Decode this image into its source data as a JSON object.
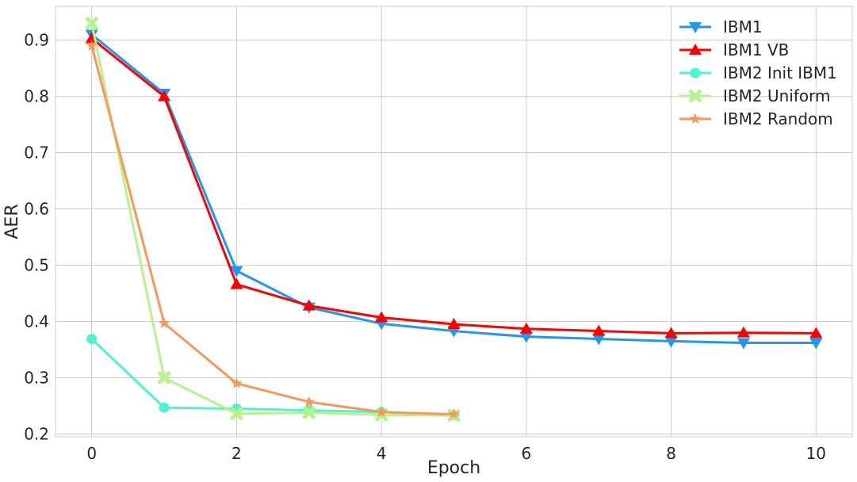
{
  "chart_data": {
    "type": "line",
    "xlabel": "Epoch",
    "ylabel": "AER",
    "xlim": [
      -0.5,
      10.5
    ],
    "ylim": [
      0.195,
      0.96
    ],
    "xticks": [
      0,
      2,
      4,
      6,
      8,
      10
    ],
    "yticks": [
      0.2,
      0.3,
      0.4,
      0.5,
      0.6,
      0.7,
      0.8,
      0.9
    ],
    "xtick_labels": [
      "0",
      "2",
      "4",
      "6",
      "8",
      "10"
    ],
    "ytick_labels": [
      "0.2",
      "0.3",
      "0.4",
      "0.5",
      "0.6",
      "0.7",
      "0.8",
      "0.9"
    ],
    "grid": true,
    "legend_position": "top-right",
    "series": [
      {
        "name": "IBM1",
        "color": "#2196f3",
        "marker": "triangle-down",
        "x": [
          0,
          1,
          2,
          3,
          4,
          5,
          6,
          7,
          8,
          9,
          10
        ],
        "y": [
          0.91,
          0.805,
          0.49,
          0.425,
          0.396,
          0.383,
          0.373,
          0.369,
          0.365,
          0.362,
          0.362
        ]
      },
      {
        "name": "IBM1 VB",
        "color": "#ff0000",
        "marker": "triangle-up",
        "x": [
          0,
          1,
          2,
          3,
          4,
          5,
          6,
          7,
          8,
          9,
          10
        ],
        "y": [
          0.903,
          0.8,
          0.466,
          0.428,
          0.407,
          0.395,
          0.387,
          0.383,
          0.379,
          0.38,
          0.379
        ]
      },
      {
        "name": "IBM2 Init IBM1",
        "color": "#4ef3cf",
        "marker": "circle",
        "x": [
          0,
          1,
          2,
          3,
          4,
          5
        ],
        "y": [
          0.369,
          0.247,
          0.245,
          0.242,
          0.239,
          0.234
        ]
      },
      {
        "name": "IBM2 Uniform",
        "color": "#b6f38f",
        "marker": "x",
        "x": [
          0,
          1,
          2,
          3,
          4,
          5
        ],
        "y": [
          0.93,
          0.3,
          0.236,
          0.238,
          0.234,
          0.233
        ]
      },
      {
        "name": "IBM2 Random",
        "color": "#f7985a",
        "marker": "star",
        "x": [
          0,
          1,
          2,
          3,
          4,
          5
        ],
        "y": [
          0.89,
          0.397,
          0.29,
          0.257,
          0.239,
          0.235
        ]
      }
    ]
  }
}
